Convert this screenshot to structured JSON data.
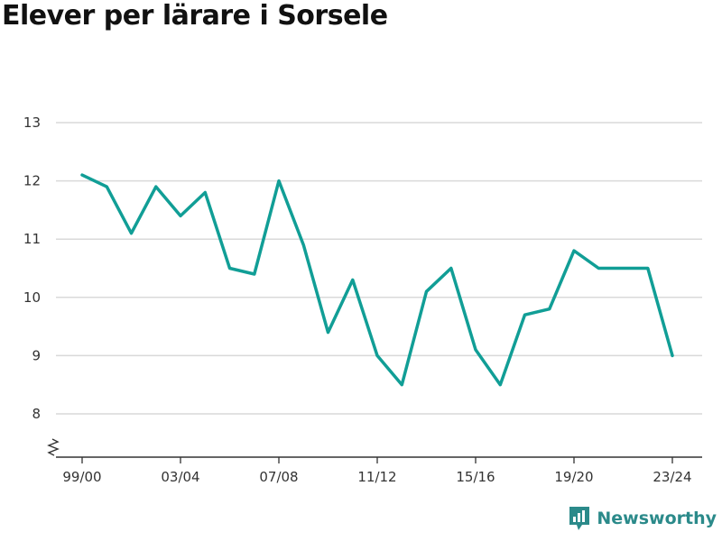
{
  "title": "Elever per lärare i Sorsele",
  "brand": {
    "name": "Newsworthy",
    "icon": "newsworthy-logo-icon",
    "color": "#2b8a8a"
  },
  "chart_data": {
    "type": "line",
    "x": [
      "99/00",
      "00/01",
      "01/02",
      "02/03",
      "03/04",
      "04/05",
      "05/06",
      "06/07",
      "07/08",
      "08/09",
      "09/10",
      "10/11",
      "11/12",
      "12/13",
      "13/14",
      "14/15",
      "15/16",
      "16/17",
      "17/18",
      "18/19",
      "19/20",
      "20/21",
      "21/22",
      "22/23",
      "23/24"
    ],
    "series": [
      {
        "values": [
          12.1,
          11.9,
          11.1,
          11.9,
          11.4,
          11.8,
          10.5,
          10.4,
          12.0,
          10.9,
          9.4,
          10.3,
          9.0,
          8.5,
          10.1,
          10.5,
          9.1,
          8.5,
          9.7,
          9.8,
          10.8,
          10.5,
          10.5,
          10.5,
          9.0
        ],
        "color": "#119e96"
      }
    ],
    "x_tick_labels": [
      "99/00",
      "03/04",
      "07/08",
      "11/12",
      "15/16",
      "19/20",
      "23/24"
    ],
    "y_ticks": [
      8,
      9,
      10,
      11,
      12,
      13
    ],
    "ylim": [
      8,
      13
    ],
    "y_axis_break": true,
    "grid": "horizontal",
    "xlabel": "",
    "ylabel": ""
  }
}
